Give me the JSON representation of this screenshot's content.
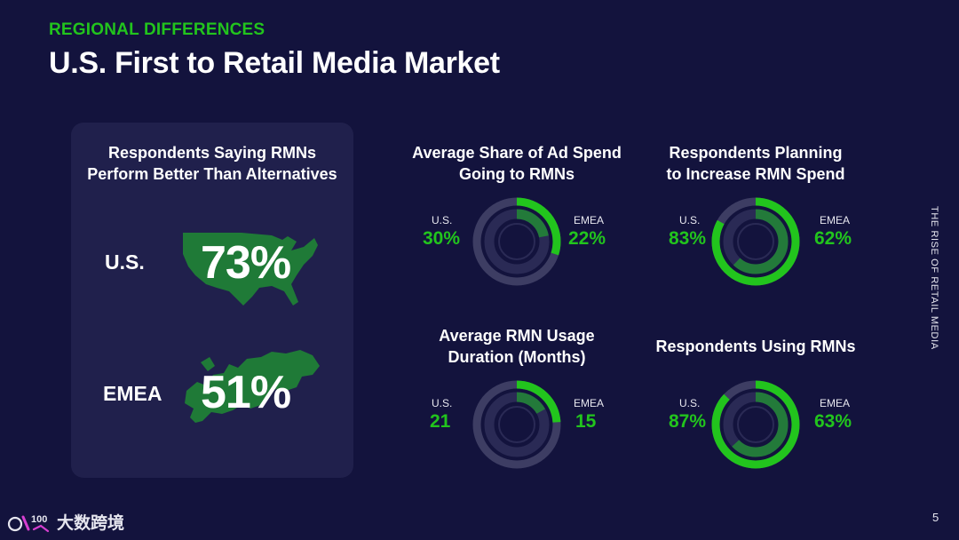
{
  "header": {
    "eyebrow": "REGIONAL DIFFERENCES",
    "title": "U.S. First to Retail Media Market"
  },
  "left_panel": {
    "heading_line1": "Respondents Saying RMNs",
    "heading_line2": "Perform Better Than Alternatives",
    "us": {
      "label": "U.S.",
      "value": "73%"
    },
    "emea": {
      "label": "EMEA",
      "value": "51%"
    }
  },
  "metrics": [
    {
      "title_line1": "Average Share of Ad Spend",
      "title_line2": "Going to RMNs",
      "us_label": "U.S.",
      "us_value": "30%",
      "us_fraction": 0.3,
      "emea_label": "EMEA",
      "emea_value": "22%",
      "emea_fraction": 0.22
    },
    {
      "title_line1": "Respondents Planning",
      "title_line2": "to Increase RMN Spend",
      "us_label": "U.S.",
      "us_value": "83%",
      "us_fraction": 0.83,
      "emea_label": "EMEA",
      "emea_value": "62%",
      "emea_fraction": 0.62
    },
    {
      "title_line1": "Average RMN Usage",
      "title_line2": "Duration (Months)",
      "us_label": "U.S.",
      "us_value": "21",
      "us_fraction": 0.24,
      "emea_label": "EMEA",
      "emea_value": "15",
      "emea_fraction": 0.17
    },
    {
      "title_line1": "Respondents Using RMNs",
      "title_line2": "",
      "us_label": "U.S.",
      "us_value": "87%",
      "us_fraction": 0.87,
      "emea_label": "EMEA",
      "emea_value": "63%",
      "emea_fraction": 0.63
    }
  ],
  "side_tag": "THE RISE OF RETAIL MEDIA",
  "page_number": "5",
  "brand": {
    "text": "大数跨境",
    "mark": "100"
  },
  "colors": {
    "background": "#13133d",
    "panel": "#20204c",
    "accent_green": "#22c41d",
    "map_green": "#1f7a37",
    "inner_green": "#237a3a",
    "ring_track": "#3d3d63",
    "ring_core": "#2a2a55"
  }
}
